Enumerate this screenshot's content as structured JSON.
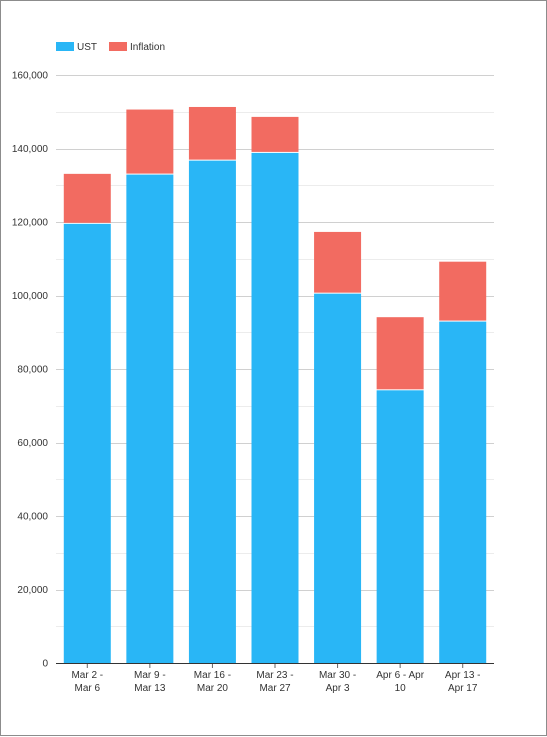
{
  "chart_data": {
    "type": "bar",
    "stacked": true,
    "categories": [
      [
        "Mar 2 -",
        "Mar 6"
      ],
      [
        "Mar 9 -",
        "Mar 13"
      ],
      [
        "Mar 16 -",
        "Mar 20"
      ],
      [
        "Mar 23 -",
        "Mar 27"
      ],
      [
        "Mar 30 -",
        "Apr 3"
      ],
      [
        "Apr 6 - Apr",
        "10"
      ],
      [
        "Apr 13 -",
        "Apr 17"
      ]
    ],
    "series": [
      {
        "name": "UST",
        "color": "#29b6f6",
        "values": [
          119500,
          132900,
          136700,
          138800,
          100500,
          74200,
          92900
        ]
      },
      {
        "name": "Inflation",
        "color": "#f26b61",
        "values": [
          13600,
          17700,
          14600,
          9800,
          16800,
          19900,
          16300
        ]
      }
    ],
    "ylim": [
      0,
      160000
    ],
    "yticks": [
      "0",
      "20,000",
      "40,000",
      "60,000",
      "80,000",
      "100,000",
      "120,000",
      "140,000",
      "160,000"
    ],
    "ytick_values": [
      0,
      20000,
      40000,
      60000,
      80000,
      100000,
      120000,
      140000,
      160000
    ],
    "grid": true,
    "legend_position": "top-left",
    "title": "",
    "xlabel": "",
    "ylabel": ""
  }
}
